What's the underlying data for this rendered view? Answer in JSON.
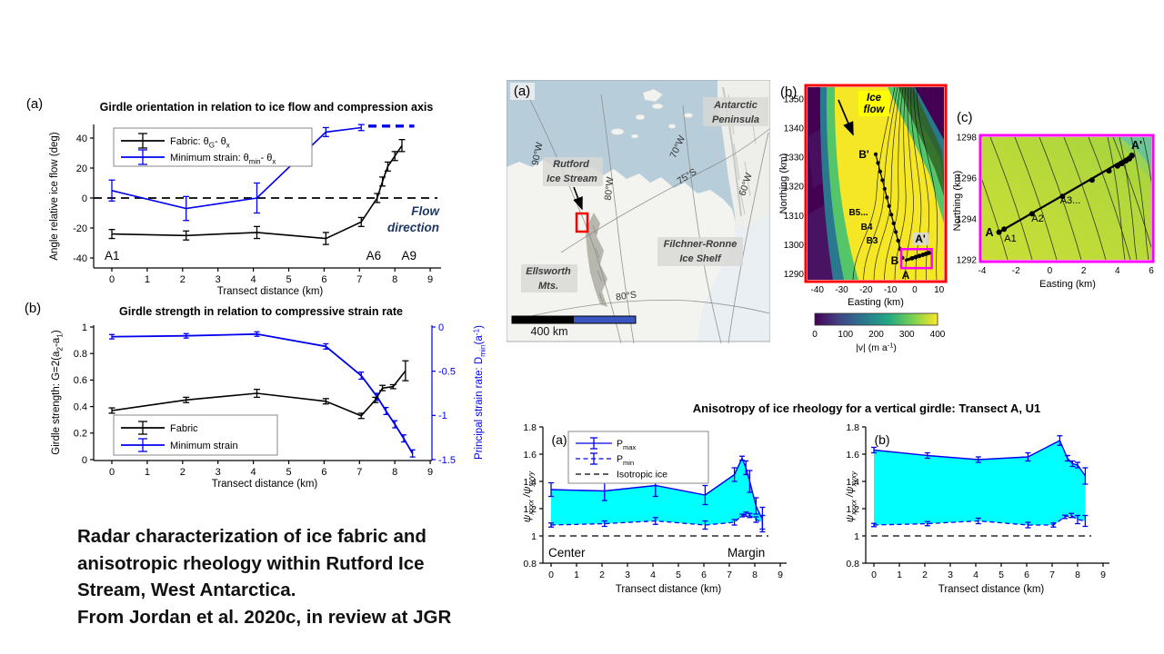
{
  "caption": {
    "lines": [
      "Radar characterization of ice fabric and",
      "anisotropic rheology within Rutford Ice",
      "Stream, West Antarctica.",
      "From Jordan et al. 2020c, in review at JGR"
    ]
  },
  "anisotropy_title": "Anisotropy of ice rheology for a vertical girdle: Transect A, U1",
  "colors": {
    "matlab_blue": "#0000EE",
    "cyan_fill": "#00FFFF",
    "magenta": "#FF00FF",
    "red": "#FF0000",
    "yellow": "#FFFF00",
    "flow_text": "#1F3864"
  },
  "chart_data": [
    {
      "id": "girdle_orientation",
      "type": "line",
      "panel_label": "(a)",
      "title": "Girdle orientation in relation to ice flow and compression axis",
      "xlabel": "Transect distance (km)",
      "ylabel": "Angle relative ice flow (deg)",
      "xticks": [
        0,
        1,
        2,
        3,
        4,
        5,
        6,
        7,
        8,
        9
      ],
      "yticks": [
        -40,
        -20,
        0,
        20,
        40
      ],
      "ylim": [
        -47,
        50
      ],
      "xlim": [
        -0.5,
        9.5
      ],
      "zero_line": 0,
      "legend": [
        {
          "label": "Fabric: θ_{G}- θ_{x}",
          "color": "#000000"
        },
        {
          "label": "Minimum strain: θ_{min}- θ_{x}",
          "color": "#0000EE"
        }
      ],
      "series": [
        {
          "name": "fabric",
          "color": "#000000",
          "x": [
            0,
            2.1,
            4.1,
            6.05,
            7.05,
            7.5,
            7.65,
            7.8,
            8.0,
            8.2
          ],
          "y": [
            -24,
            -25,
            -23,
            -27,
            -16,
            0,
            11,
            21,
            28,
            35
          ],
          "err": [
            3,
            3,
            4,
            4,
            3,
            3,
            3,
            3,
            3,
            4
          ]
        },
        {
          "name": "minimum_strain",
          "color": "#0000EE",
          "x": [
            0,
            2.1,
            4.1,
            6.05,
            7.05
          ],
          "y": [
            5,
            -7,
            0,
            44,
            47
          ],
          "err": [
            7,
            8,
            10,
            3,
            2
          ]
        }
      ],
      "dashed_segment": {
        "x": [
          7.25,
          8.55
        ],
        "y": 48
      },
      "annotations": {
        "a1": "A1",
        "a6": "A6",
        "a9": "A9",
        "flow": [
          "Flow",
          "direction"
        ]
      }
    },
    {
      "id": "girdle_strength",
      "type": "line",
      "panel_label": "(b)",
      "title": "Girdle strength in relation to compressive strain rate",
      "xlabel": "Transect distance (km)",
      "ylabel_left": "Girdle strength: G=2(a_{2}-a_{1})",
      "ylabel_right": "Principal strain rate: D_{min}(a^{-1})",
      "xticks": [
        0,
        1,
        2,
        3,
        4,
        5,
        6,
        7,
        8,
        9
      ],
      "yticks_left": [
        0,
        0.2,
        0.4,
        0.6,
        0.8,
        1
      ],
      "yticks_right": [
        0,
        -0.5,
        -1,
        -1.5
      ],
      "ylim_left": [
        0,
        1.02
      ],
      "ylim_right": [
        -1.53,
        0.03
      ],
      "legend": [
        {
          "label": "Fabric",
          "color": "#000000"
        },
        {
          "label": "Minimum strain",
          "color": "#0000EE"
        }
      ],
      "series": [
        {
          "name": "fabric",
          "axis": "left",
          "color": "#000000",
          "x": [
            0,
            2.1,
            4.1,
            6.05,
            7.05,
            7.45,
            7.65,
            7.95,
            8.3
          ],
          "y": [
            0.37,
            0.45,
            0.5,
            0.44,
            0.33,
            0.45,
            0.54,
            0.55,
            0.67
          ],
          "err": [
            0.02,
            0.02,
            0.03,
            0.02,
            0.02,
            0.02,
            0.02,
            0.015,
            0.075
          ]
        },
        {
          "name": "minimum_strain",
          "axis": "right",
          "color": "#0000EE",
          "x": [
            0,
            2.1,
            4.1,
            6.05,
            7.05,
            7.5,
            7.75,
            8.0,
            8.25,
            8.5
          ],
          "y": [
            -0.11,
            -0.1,
            -0.08,
            -0.22,
            -0.55,
            -0.79,
            -0.95,
            -1.1,
            -1.26,
            -1.43
          ],
          "err": [
            0.025,
            0.025,
            0.025,
            0.03,
            0.04,
            0.04,
            0.04,
            0.04,
            0.04,
            0.04
          ]
        }
      ]
    },
    {
      "id": "anisotropy_a",
      "type": "line",
      "panel_label": "(a)",
      "xlabel": "Transect distance (km)",
      "ylabel": "ψ_{xxxx} /ψ_{yyyy}",
      "xticks": [
        0,
        1,
        2,
        3,
        4,
        5,
        6,
        7,
        8,
        9
      ],
      "yticks": [
        0.8,
        1,
        1.2,
        1.4,
        1.6,
        1.8
      ],
      "ylim": [
        0.8,
        1.8
      ],
      "isotropic_y": 1,
      "legend": [
        {
          "label": "P_{max}",
          "style": "solid"
        },
        {
          "label": "P_{min}",
          "style": "dashed"
        },
        {
          "label": "Isotropic ice",
          "style": "black-dash"
        }
      ],
      "pmax": {
        "x": [
          0,
          2.1,
          4.1,
          6.05,
          7.2,
          7.5,
          7.65,
          7.8,
          8.05,
          8.3
        ],
        "y": [
          1.34,
          1.33,
          1.37,
          1.3,
          1.45,
          1.57,
          1.5,
          1.4,
          1.22,
          1.12
        ],
        "err": [
          0.05,
          0.07,
          0.08,
          0.07,
          0.05,
          0.015,
          0.05,
          0.08,
          0.06,
          0.09
        ]
      },
      "pmin": {
        "x": [
          0,
          2.1,
          4.1,
          6.05,
          7.2,
          7.5,
          7.65,
          7.8,
          8.05,
          8.3
        ],
        "y": [
          1.08,
          1.09,
          1.11,
          1.08,
          1.1,
          1.15,
          1.16,
          1.15,
          1.12,
          1.1
        ],
        "err": [
          0.015,
          0.02,
          0.025,
          0.03,
          0.02,
          0.01,
          0.015,
          0.015,
          0.02,
          0.05
        ]
      },
      "annotations": {
        "left": "Center",
        "right": "Margin"
      }
    },
    {
      "id": "anisotropy_b",
      "type": "line",
      "panel_label": "(b)",
      "xlabel": "Transect distance (km)",
      "ylabel": "ψ_{xxxx} /ψ_{xyxy}",
      "xticks": [
        0,
        1,
        2,
        3,
        4,
        5,
        6,
        7,
        8,
        9
      ],
      "yticks": [
        0.8,
        1,
        1.2,
        1.4,
        1.6,
        1.8
      ],
      "ylim": [
        0.8,
        1.8
      ],
      "isotropic_y": 1,
      "pmax": {
        "x": [
          0,
          2.1,
          4.1,
          6.05,
          7.3,
          7.6,
          7.8,
          8.0,
          8.3
        ],
        "y": [
          1.63,
          1.59,
          1.56,
          1.58,
          1.7,
          1.57,
          1.53,
          1.52,
          1.44
        ],
        "err": [
          0.02,
          0.02,
          0.02,
          0.03,
          0.035,
          0.02,
          0.02,
          0.02,
          0.06
        ]
      },
      "pmin": {
        "x": [
          0,
          2.1,
          4.1,
          6.05,
          7.05,
          7.5,
          7.75,
          8.0,
          8.3
        ],
        "y": [
          1.08,
          1.09,
          1.11,
          1.08,
          1.08,
          1.14,
          1.15,
          1.12,
          1.11
        ],
        "err": [
          0.012,
          0.015,
          0.02,
          0.02,
          0.015,
          0.012,
          0.015,
          0.03,
          0.04
        ]
      }
    }
  ],
  "maps": {
    "overview": {
      "panel_label": "(a)",
      "place_labels": {
        "peninsula": [
          "Antarctic",
          "Peninsula"
        ],
        "rutford": [
          "Rutford",
          "Ice Stream"
        ],
        "filchner": [
          "Filchner-Ronne",
          "Ice Shelf"
        ],
        "ellsworth": [
          "Ellsworth",
          "Mts."
        ]
      },
      "graticule_labels": [
        "90°W",
        "80°W",
        "70°W",
        "60°W",
        "75°S",
        "80°S"
      ],
      "scale_label": "400 km"
    },
    "velocity": {
      "panel_label": "(b)",
      "xlabel": "Easting (km)",
      "ylabel": "Northing (km)",
      "xticks": [
        -40,
        -30,
        -20,
        -10,
        0,
        10
      ],
      "yticks": [
        1290,
        1300,
        1310,
        1320,
        1330,
        1340,
        1350
      ],
      "flow_label": [
        "Ice",
        "flow"
      ],
      "transect_labels": {
        "b_end": "B'",
        "b5": "B5...",
        "b4": "B4",
        "b3": "B3",
        "b": "B",
        "a": "A",
        "a_end": "A'"
      },
      "colorbar": {
        "ticks": [
          0,
          100,
          200,
          300,
          400
        ],
        "label": "|v| (m a^{-1})"
      }
    },
    "transect": {
      "panel_label": "(c)",
      "xlabel": "Easting (km)",
      "ylabel": "Northing (km)",
      "xticks": [
        -4,
        -2,
        0,
        2,
        4,
        6
      ],
      "yticks": [
        1292,
        1294,
        1296,
        1298
      ],
      "point_labels": {
        "a": "A",
        "a1": "A1",
        "a2": "A2",
        "a3": "A3...",
        "a_end": "A'"
      }
    }
  }
}
